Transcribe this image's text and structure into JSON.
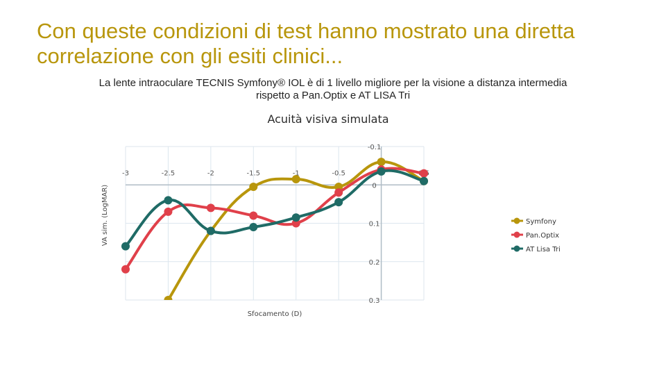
{
  "slide": {
    "title": "Con queste condizioni di test hanno mostrato una diretta correlazione con gli esiti clinici...",
    "subtitle": "La lente intraoculare TECNIS Symfony® IOL è di 1 livello migliore per la visione a distanza intermedia rispetto a Pan.Optix e AT LISA Tri"
  },
  "chart_data": {
    "type": "line",
    "title": "Acuità visiva simulata",
    "xlabel": "Sfocamento (D)",
    "ylabel": "VA sim. (LogMAR)",
    "x": [
      -3,
      -2.5,
      -2,
      -1.5,
      -1,
      -0.5,
      0,
      0.5
    ],
    "xlim": [
      -3,
      0.5
    ],
    "ylim": [
      -0.1,
      0.3
    ],
    "y_inverted": true,
    "x_ticks": [
      "-3",
      "-2.5",
      "-2",
      "-1.5",
      "-1",
      "-0.5",
      "0.5"
    ],
    "y_ticks": [
      "-0.1",
      "0",
      "0.1",
      "0.2",
      "0.3"
    ],
    "grid": true,
    "smooth": true,
    "legend_position": "right",
    "series": [
      {
        "name": "Symfony",
        "color": "#b8960c",
        "values": [
          null,
          0.3,
          0.12,
          0.005,
          -0.015,
          0.005,
          -0.06,
          -0.01
        ]
      },
      {
        "name": "Pan.Optix",
        "color": "#e0404a",
        "values": [
          0.22,
          0.07,
          0.06,
          0.08,
          0.1,
          0.02,
          -0.04,
          -0.03
        ]
      },
      {
        "name": "AT Lisa Tri",
        "color": "#1f6b66",
        "values": [
          0.16,
          0.04,
          0.12,
          0.11,
          0.085,
          0.045,
          -0.035,
          -0.01
        ]
      }
    ]
  }
}
